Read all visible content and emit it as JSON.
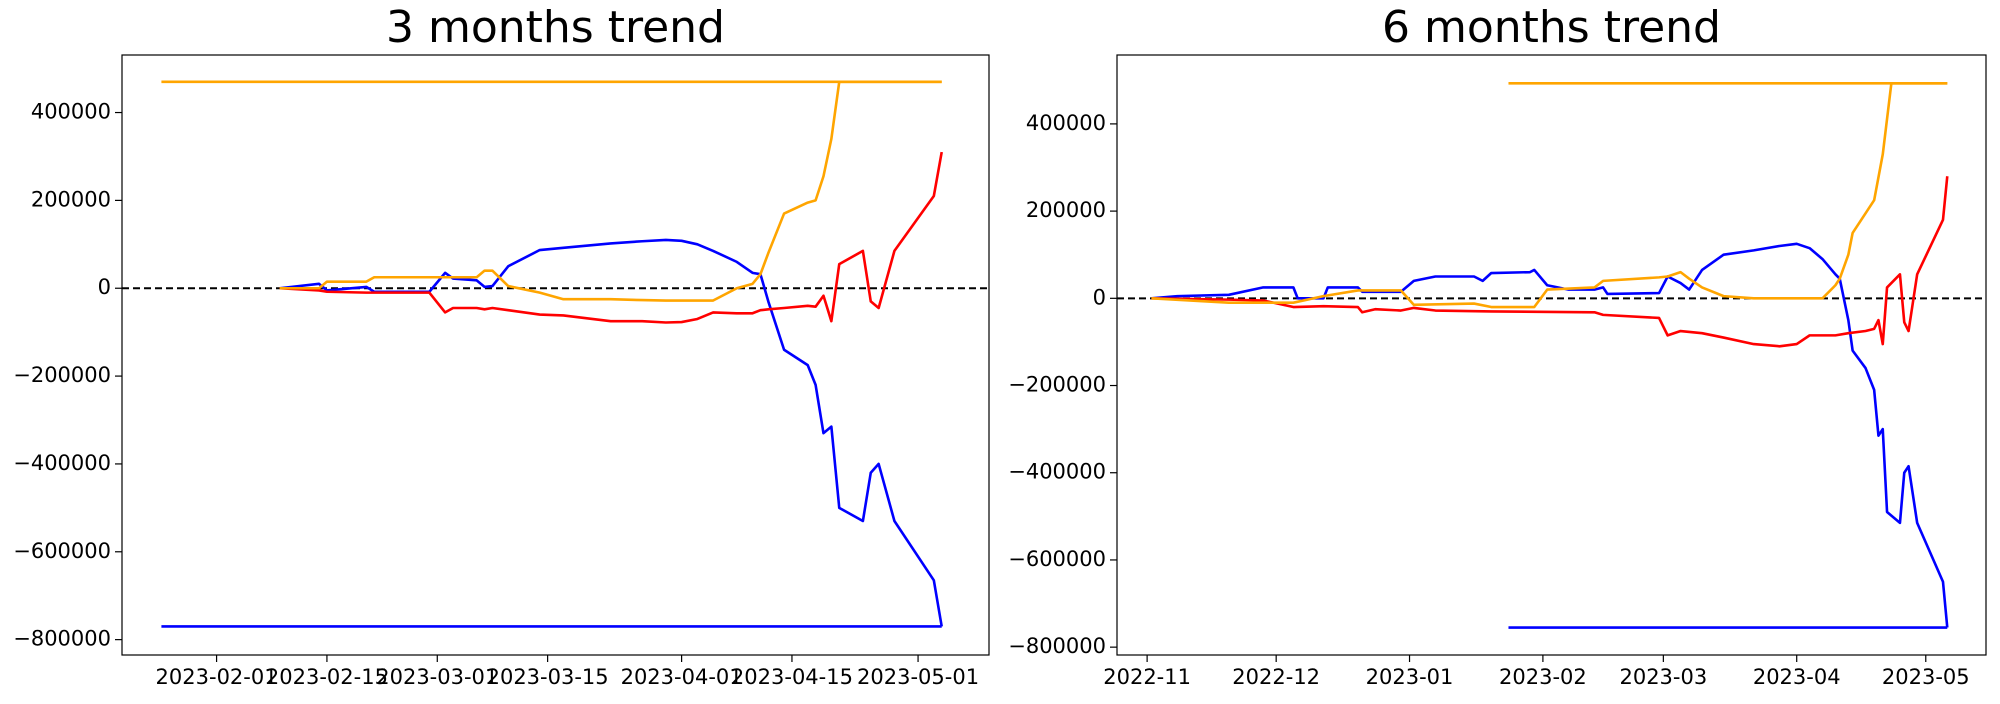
{
  "chart_data": [
    {
      "type": "line",
      "title": "3 months trend",
      "xlim": [
        "2023-01-20",
        "2023-05-10"
      ],
      "xticks": [
        "2023-02-01",
        "2023-02-15",
        "2023-03-01",
        "2023-03-15",
        "2023-04-01",
        "2023-04-15",
        "2023-05-01"
      ],
      "ylim": [
        -835000,
        531000
      ],
      "yticks": [
        {
          "value": -800000,
          "label": "−800000"
        },
        {
          "value": -600000,
          "label": "−600000"
        },
        {
          "value": -400000,
          "label": "−400000"
        },
        {
          "value": -200000,
          "label": "−200000"
        },
        0,
        200000,
        400000
      ],
      "hline": 0,
      "series": [
        {
          "color": "#ffa500",
          "x": [
            "2023-01-25",
            "2023-05-04"
          ],
          "values": [
            470000,
            470000
          ]
        },
        {
          "color": "#0000ff",
          "x": [
            "2023-01-25",
            "2023-05-04"
          ],
          "values": [
            -770000,
            -770000
          ]
        },
        {
          "color": "#0000ff",
          "x": [
            "2023-02-09",
            "2023-02-14",
            "2023-02-15",
            "2023-02-20",
            "2023-02-21",
            "2023-02-28",
            "2023-03-02",
            "2023-03-03",
            "2023-03-06",
            "2023-03-07",
            "2023-03-08",
            "2023-03-10",
            "2023-03-14",
            "2023-03-17",
            "2023-03-23",
            "2023-03-27",
            "2023-03-30",
            "2023-04-01",
            "2023-04-03",
            "2023-04-05",
            "2023-04-08",
            "2023-04-10",
            "2023-04-11",
            "2023-04-12",
            "2023-04-14",
            "2023-04-17",
            "2023-04-18",
            "2023-04-19",
            "2023-04-20",
            "2023-04-21",
            "2023-04-24",
            "2023-04-25",
            "2023-04-26",
            "2023-04-28",
            "2023-05-03",
            "2023-05-04"
          ],
          "values": [
            0,
            10000,
            -5000,
            3000,
            -8000,
            -8000,
            35000,
            22000,
            18000,
            3000,
            5000,
            50000,
            87000,
            92000,
            102000,
            107000,
            110000,
            108000,
            100000,
            85000,
            60000,
            35000,
            32000,
            -30000,
            -140000,
            -175000,
            -220000,
            -330000,
            -315000,
            -500000,
            -530000,
            -420000,
            -400000,
            -530000,
            -665000,
            -770000
          ]
        },
        {
          "color": "#ff0000",
          "x": [
            "2023-02-09",
            "2023-02-14",
            "2023-02-15",
            "2023-02-20",
            "2023-02-21",
            "2023-02-28",
            "2023-03-02",
            "2023-03-03",
            "2023-03-06",
            "2023-03-07",
            "2023-03-08",
            "2023-03-10",
            "2023-03-14",
            "2023-03-17",
            "2023-03-23",
            "2023-03-27",
            "2023-03-30",
            "2023-04-01",
            "2023-04-03",
            "2023-04-05",
            "2023-04-08",
            "2023-04-10",
            "2023-04-11",
            "2023-04-12",
            "2023-04-14",
            "2023-04-17",
            "2023-04-18",
            "2023-04-19",
            "2023-04-20",
            "2023-04-21",
            "2023-04-24",
            "2023-04-25",
            "2023-04-26",
            "2023-04-28",
            "2023-05-03",
            "2023-05-04"
          ],
          "values": [
            0,
            -5000,
            -8000,
            -10000,
            -10000,
            -10000,
            -55000,
            -45000,
            -45000,
            -48000,
            -45000,
            -50000,
            -60000,
            -62000,
            -75000,
            -75000,
            -78000,
            -77000,
            -70000,
            -55000,
            -57000,
            -57000,
            -50000,
            -48000,
            -45000,
            -40000,
            -42000,
            -17000,
            -75000,
            55000,
            85000,
            -30000,
            -45000,
            85000,
            210000,
            310000
          ]
        },
        {
          "color": "#ffa500",
          "x": [
            "2023-02-09",
            "2023-02-14",
            "2023-02-15",
            "2023-02-20",
            "2023-02-21",
            "2023-02-28",
            "2023-03-02",
            "2023-03-03",
            "2023-03-06",
            "2023-03-07",
            "2023-03-08",
            "2023-03-10",
            "2023-03-14",
            "2023-03-17",
            "2023-03-23",
            "2023-03-27",
            "2023-03-30",
            "2023-04-01",
            "2023-04-03",
            "2023-04-05",
            "2023-04-08",
            "2023-04-10",
            "2023-04-11",
            "2023-04-12",
            "2023-04-14",
            "2023-04-17",
            "2023-04-18",
            "2023-04-19",
            "2023-04-20",
            "2023-04-21",
            "2023-04-24",
            "2023-04-25",
            "2023-04-26",
            "2023-04-28",
            "2023-05-03",
            "2023-05-04"
          ],
          "values": [
            0,
            0,
            15000,
            15000,
            25000,
            25000,
            25000,
            25000,
            25000,
            40000,
            40000,
            5000,
            -10000,
            -25000,
            -25000,
            -27000,
            -28000,
            -28000,
            -28000,
            -28000,
            0,
            10000,
            32000,
            80000,
            170000,
            195000,
            200000,
            255000,
            340000,
            470000,
            470000,
            470000,
            470000,
            470000,
            470000,
            470000
          ]
        }
      ]
    },
    {
      "type": "line",
      "title": "6 months trend",
      "xlim": [
        "2022-10-25",
        "2023-05-15"
      ],
      "xticks": [
        {
          "value": "2022-11-01",
          "label": "2022-11"
        },
        {
          "value": "2022-12-01",
          "label": "2022-12"
        },
        {
          "value": "2023-01-01",
          "label": "2023-01"
        },
        {
          "value": "2023-02-01",
          "label": "2023-02"
        },
        {
          "value": "2023-03-01",
          "label": "2023-03"
        },
        {
          "value": "2023-04-01",
          "label": "2023-04"
        },
        {
          "value": "2023-05-01",
          "label": "2023-05"
        }
      ],
      "ylim": [
        -818000,
        558000
      ],
      "yticks": [
        {
          "value": -800000,
          "label": "−800000"
        },
        {
          "value": -600000,
          "label": "−600000"
        },
        {
          "value": -400000,
          "label": "−400000"
        },
        {
          "value": -200000,
          "label": "−200000"
        },
        0,
        200000,
        400000
      ],
      "hline": 0,
      "series": [
        {
          "color": "#ffa500",
          "x": [
            "2023-01-24",
            "2023-05-06"
          ],
          "values": [
            493000,
            493000
          ]
        },
        {
          "color": "#0000ff",
          "x": [
            "2023-01-24",
            "2023-05-06"
          ],
          "values": [
            -755000,
            -755000
          ]
        },
        {
          "color": "#0000ff",
          "x": [
            "2022-11-02",
            "2022-11-08",
            "2022-11-20",
            "2022-11-28",
            "2022-12-05",
            "2022-12-06",
            "2022-12-12",
            "2022-12-13",
            "2022-12-20",
            "2022-12-21",
            "2022-12-30",
            "2023-01-02",
            "2023-01-07",
            "2023-01-16",
            "2023-01-18",
            "2023-01-20",
            "2023-01-29",
            "2023-01-30",
            "2023-02-02",
            "2023-02-07",
            "2023-02-13",
            "2023-02-15",
            "2023-02-16",
            "2023-02-28",
            "2023-03-02",
            "2023-03-05",
            "2023-03-07",
            "2023-03-10",
            "2023-03-15",
            "2023-03-22",
            "2023-03-28",
            "2023-04-01",
            "2023-04-04",
            "2023-04-07",
            "2023-04-10",
            "2023-04-11",
            "2023-04-13",
            "2023-04-14",
            "2023-04-17",
            "2023-04-19",
            "2023-04-20",
            "2023-04-21",
            "2023-04-22",
            "2023-04-25",
            "2023-04-26",
            "2023-04-27",
            "2023-04-29",
            "2023-05-05",
            "2023-05-06"
          ],
          "values": [
            0,
            5000,
            8000,
            25000,
            25000,
            0,
            0,
            25000,
            25000,
            15000,
            15000,
            40000,
            50000,
            50000,
            40000,
            58000,
            60000,
            65000,
            30000,
            20000,
            20000,
            25000,
            10000,
            12000,
            50000,
            35000,
            20000,
            65000,
            100000,
            110000,
            120000,
            125000,
            115000,
            90000,
            55000,
            45000,
            -50000,
            -120000,
            -160000,
            -210000,
            -315000,
            -300000,
            -490000,
            -515000,
            -400000,
            -385000,
            -515000,
            -650000,
            -755000
          ]
        },
        {
          "color": "#ff0000",
          "x": [
            "2022-11-02",
            "2022-11-20",
            "2022-11-28",
            "2022-12-05",
            "2022-12-12",
            "2022-12-20",
            "2022-12-21",
            "2022-12-24",
            "2022-12-30",
            "2023-01-02",
            "2023-01-07",
            "2023-01-20",
            "2023-02-13",
            "2023-02-15",
            "2023-02-28",
            "2023-03-02",
            "2023-03-05",
            "2023-03-10",
            "2023-03-15",
            "2023-03-22",
            "2023-03-28",
            "2023-04-01",
            "2023-04-04",
            "2023-04-10",
            "2023-04-13",
            "2023-04-17",
            "2023-04-19",
            "2023-04-20",
            "2023-04-21",
            "2023-04-22",
            "2023-04-25",
            "2023-04-26",
            "2023-04-27",
            "2023-04-29",
            "2023-05-05",
            "2023-05-06"
          ],
          "values": [
            0,
            -3000,
            -5000,
            -20000,
            -18000,
            -20000,
            -32000,
            -25000,
            -28000,
            -22000,
            -28000,
            -30000,
            -32000,
            -38000,
            -45000,
            -85000,
            -75000,
            -80000,
            -90000,
            -105000,
            -110000,
            -105000,
            -85000,
            -85000,
            -80000,
            -75000,
            -70000,
            -50000,
            -105000,
            25000,
            55000,
            -55000,
            -75000,
            55000,
            180000,
            280000
          ]
        },
        {
          "color": "#ffa500",
          "x": [
            "2022-11-02",
            "2022-11-20",
            "2022-12-05",
            "2022-12-12",
            "2022-12-20",
            "2022-12-30",
            "2023-01-02",
            "2023-01-16",
            "2023-01-20",
            "2023-01-30",
            "2023-02-02",
            "2023-02-13",
            "2023-02-15",
            "2023-02-28",
            "2023-03-02",
            "2023-03-05",
            "2023-03-07",
            "2023-03-10",
            "2023-03-15",
            "2023-03-22",
            "2023-04-07",
            "2023-04-10",
            "2023-04-11",
            "2023-04-13",
            "2023-04-14",
            "2023-04-17",
            "2023-04-19",
            "2023-04-21",
            "2023-04-23",
            "2023-05-06"
          ],
          "values": [
            0,
            -10000,
            -10000,
            5000,
            18000,
            18000,
            -15000,
            -12000,
            -20000,
            -20000,
            20000,
            25000,
            40000,
            48000,
            50000,
            60000,
            45000,
            25000,
            5000,
            0,
            0,
            30000,
            45000,
            100000,
            150000,
            195000,
            225000,
            330000,
            493000,
            493000
          ]
        }
      ]
    }
  ]
}
